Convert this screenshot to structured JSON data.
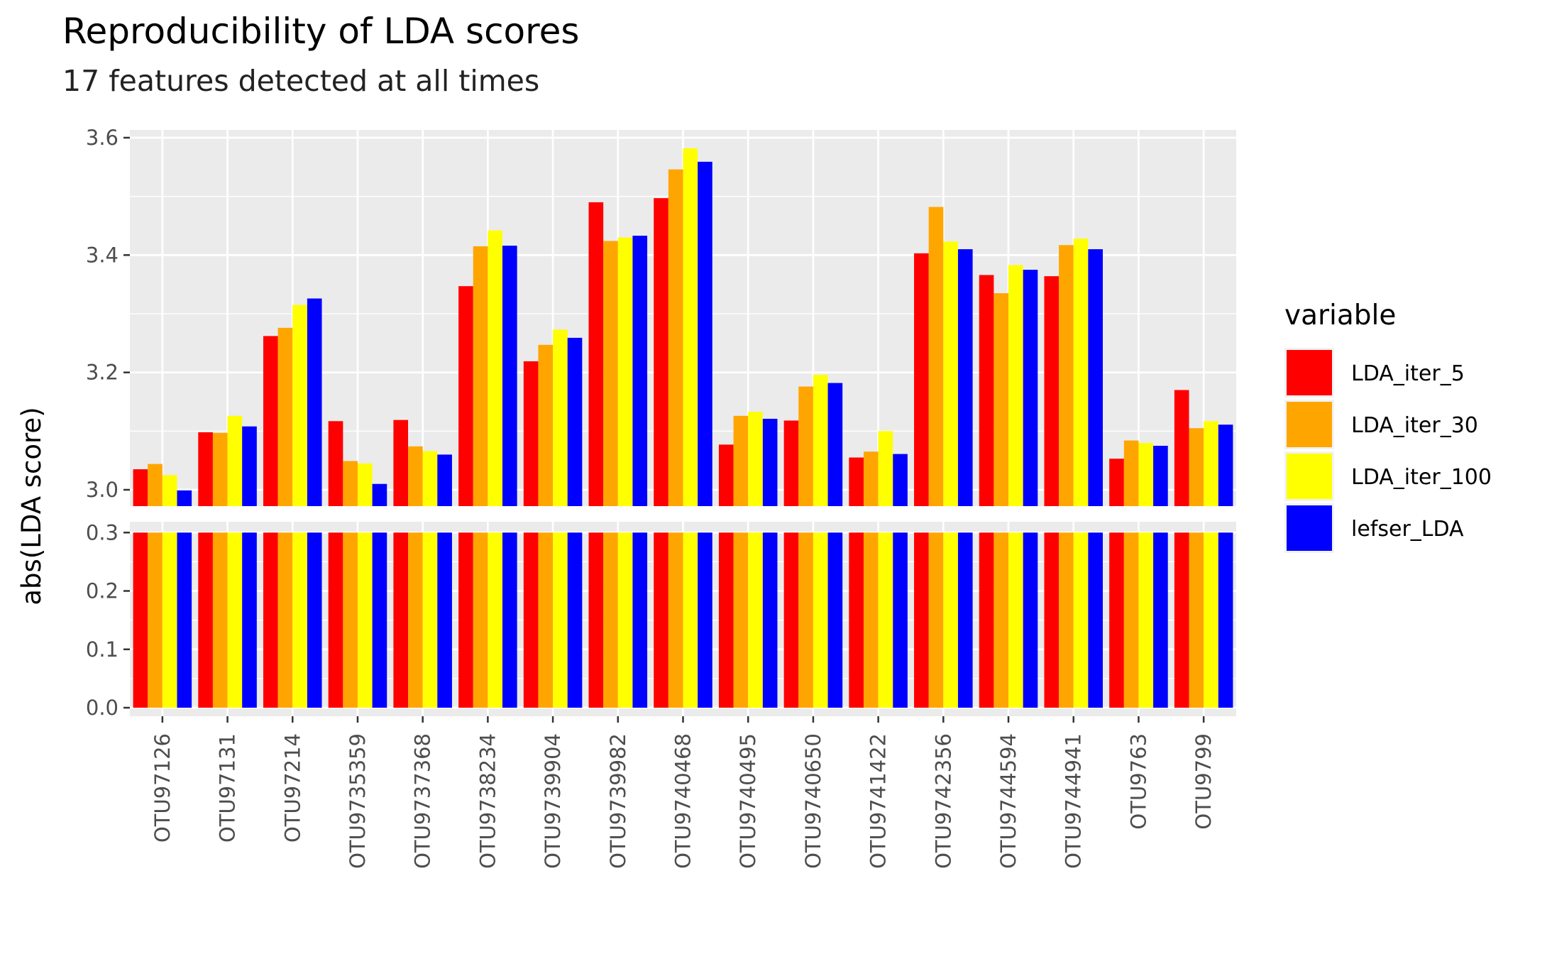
{
  "chart_data": {
    "type": "bar",
    "title": "Reproducibility of LDA scores",
    "subtitle": "17 features detected at all times",
    "ylabel": "abs(LDA score)",
    "xlabel": "",
    "y_axis_break": {
      "lower_range": [
        0.0,
        0.3
      ],
      "upper_range": [
        3.0,
        3.6
      ],
      "lower_ticks": [
        "0.0",
        "0.1",
        "0.2",
        "0.3"
      ],
      "upper_ticks": [
        "3.0",
        "3.2",
        "3.4",
        "3.6"
      ]
    },
    "grid": true,
    "legend": {
      "title": "variable",
      "position": "right"
    },
    "categories": [
      "OTU97126",
      "OTU97131",
      "OTU97214",
      "OTU9735359",
      "OTU9737368",
      "OTU9738234",
      "OTU9739904",
      "OTU9739982",
      "OTU9740468",
      "OTU9740495",
      "OTU9740650",
      "OTU9741422",
      "OTU9742356",
      "OTU9744594",
      "OTU9744941",
      "OTU9763",
      "OTU9799"
    ],
    "series": [
      {
        "name": "LDA_iter_5",
        "color": "#ff0000",
        "values": [
          3.035,
          3.098,
          3.262,
          3.117,
          3.119,
          3.347,
          3.219,
          3.49,
          3.497,
          3.077,
          3.118,
          3.055,
          3.403,
          3.366,
          3.364,
          3.053,
          3.17
        ]
      },
      {
        "name": "LDA_iter_30",
        "color": "#ffa500",
        "values": [
          3.044,
          3.097,
          3.276,
          3.049,
          3.074,
          3.415,
          3.247,
          3.424,
          3.546,
          3.126,
          3.176,
          3.065,
          3.482,
          3.335,
          3.417,
          3.084,
          3.105
        ]
      },
      {
        "name": "LDA_iter_100",
        "color": "#ffff00",
        "values": [
          3.025,
          3.126,
          3.315,
          3.045,
          3.066,
          3.442,
          3.273,
          3.43,
          3.582,
          3.133,
          3.196,
          3.1,
          3.423,
          3.383,
          3.428,
          3.08,
          3.117
        ]
      },
      {
        "name": "lefser_LDA",
        "color": "#0000ff",
        "values": [
          2.999,
          3.108,
          3.326,
          3.01,
          3.06,
          3.416,
          3.259,
          3.433,
          3.559,
          3.121,
          3.182,
          3.061,
          3.41,
          3.375,
          3.41,
          3.075,
          3.111
        ]
      }
    ]
  }
}
